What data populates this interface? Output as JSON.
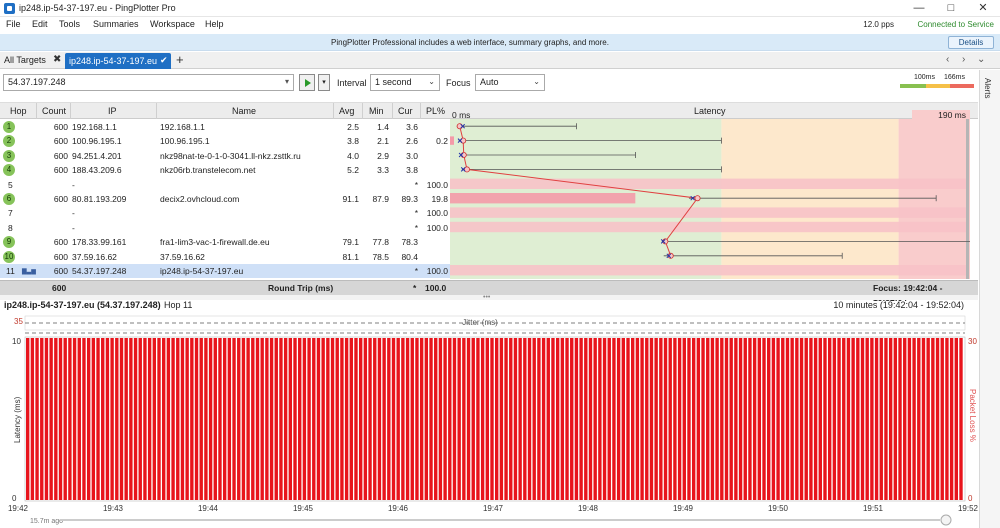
{
  "window": {
    "title": "ip248.ip-54-37-197.eu - PingPlotter Pro"
  },
  "menu": {
    "items": [
      "File",
      "Edit",
      "Tools",
      "Summaries",
      "Workspace",
      "Help"
    ],
    "pps": "12.0 pps",
    "status": "Connected to Service"
  },
  "banner": {
    "message": "PingPlotter Professional includes a web interface, summary graphs, and more.",
    "details_label": "Details"
  },
  "tabs": {
    "all_targets": "All Targets",
    "active": "ip248.ip-54-37-197.eu"
  },
  "toolbar": {
    "target": "54.37.197.248",
    "interval_label": "Interval",
    "interval_value": "1 second",
    "focus_label": "Focus",
    "focus_value": "Auto",
    "legend_100": "100ms",
    "legend_166": "166ms"
  },
  "alerts_label": "Alerts",
  "colors": {
    "good": "#88c050",
    "warn": "#f5c048",
    "bad": "#ec6a5e",
    "green_bg": "#dfeed3",
    "yellow_bg": "#fde8cc",
    "red_bg": "#f9cccc"
  },
  "table": {
    "headers": {
      "hop": "Hop",
      "count": "Count",
      "ip": "IP",
      "name": "Name",
      "avg": "Avg",
      "min": "Min",
      "cur": "Cur",
      "pl": "PL%"
    },
    "graph_header": {
      "start": "0 ms",
      "title": "Latency",
      "end": "190 ms"
    },
    "rows": [
      {
        "hop": "1",
        "count": "600",
        "ip": "192.168.1.1",
        "name": "192.168.1.1",
        "avg": "2.5",
        "min": "1.4",
        "cur": "3.6",
        "pl": "",
        "minv": 1.4,
        "avgv": 2.5,
        "maxv": 46,
        "curv": 3.6,
        "loss": 0
      },
      {
        "hop": "2",
        "count": "600",
        "ip": "100.96.195.1",
        "name": "100.96.195.1",
        "avg": "3.8",
        "min": "2.1",
        "cur": "2.6",
        "pl": "0.2",
        "minv": 2.1,
        "avgv": 3.8,
        "maxv": 100,
        "curv": 2.6,
        "loss": 0.2
      },
      {
        "hop": "3",
        "count": "600",
        "ip": "94.251.4.201",
        "name": "nkz98nat-te-0-1-0-3041.ll-nkz.zsttk.ru",
        "avg": "4.0",
        "min": "2.9",
        "cur": "3.0",
        "pl": "",
        "minv": 2.9,
        "avgv": 4.0,
        "maxv": 68,
        "curv": 3.0,
        "loss": 0
      },
      {
        "hop": "4",
        "count": "600",
        "ip": "188.43.209.6",
        "name": "nkz06rb.transtelecom.net",
        "avg": "5.2",
        "min": "3.3",
        "cur": "3.8",
        "pl": "",
        "minv": 3.3,
        "avgv": 5.2,
        "maxv": 100,
        "curv": 3.8,
        "loss": 0
      },
      {
        "hop": "5",
        "count": "",
        "ip": "-",
        "name": "",
        "avg": "",
        "min": "",
        "cur": "*",
        "pl": "100.0",
        "minv": null,
        "avgv": null,
        "maxv": null,
        "curv": null,
        "loss": 100
      },
      {
        "hop": "6",
        "count": "600",
        "ip": "80.81.193.209",
        "name": "decix2.ovhcloud.com",
        "avg": "91.1",
        "min": "87.9",
        "cur": "89.3",
        "pl": "19.8",
        "minv": 87.9,
        "avgv": 91.1,
        "maxv": 180,
        "curv": 89.3,
        "loss": 19.8
      },
      {
        "hop": "7",
        "count": "",
        "ip": "-",
        "name": "",
        "avg": "",
        "min": "",
        "cur": "*",
        "pl": "100.0",
        "minv": null,
        "avgv": null,
        "maxv": null,
        "curv": null,
        "loss": 100
      },
      {
        "hop": "8",
        "count": "",
        "ip": "-",
        "name": "",
        "avg": "",
        "min": "",
        "cur": "*",
        "pl": "100.0",
        "minv": null,
        "avgv": null,
        "maxv": null,
        "curv": null,
        "loss": 100
      },
      {
        "hop": "9",
        "count": "600",
        "ip": "178.33.99.161",
        "name": "fra1-lim3-vac-1-firewall.de.eu",
        "avg": "79.1",
        "min": "77.8",
        "cur": "78.3",
        "pl": "",
        "minv": 77.8,
        "avgv": 79.1,
        "maxv": 195,
        "curv": 78.3,
        "loss": 0
      },
      {
        "hop": "10",
        "count": "600",
        "ip": "37.59.16.62",
        "name": "37.59.16.62",
        "avg": "81.1",
        "min": "78.5",
        "cur": "80.4",
        "pl": "",
        "minv": 78.5,
        "avgv": 81.1,
        "maxv": 145,
        "curv": 80.4,
        "loss": 0
      },
      {
        "hop": "11",
        "count": "600",
        "ip": "54.37.197.248",
        "name": "ip248.ip-54-37-197.eu",
        "avg": "",
        "min": "",
        "cur": "*",
        "pl": "100.0",
        "minv": null,
        "avgv": null,
        "maxv": null,
        "curv": null,
        "loss": 100
      }
    ],
    "round_trip": {
      "count": "600",
      "label": "Round Trip (ms)",
      "cur": "*",
      "pl": "100.0",
      "focus": "Focus: 19:42:04 - 19:52:04"
    }
  },
  "lower": {
    "title": "ip248.ip-54-37-197.eu (54.37.197.248)",
    "hop": "Hop 11",
    "range": "10 minutes (19:42:04 - 19:52:04)",
    "jitter_label": "Jitter (ms)",
    "y_top": "35",
    "y_max": "10",
    "y_min": "0",
    "right_max": "30",
    "right_min": "0",
    "ylabel": "Latency (ms)",
    "y2label": "Packet Loss %",
    "times": [
      "19:42",
      "19:43",
      "19:44",
      "19:45",
      "19:46",
      "19:47",
      "19:48",
      "19:49",
      "19:50",
      "19:51",
      "19:52"
    ],
    "ago": "15.7m ago"
  }
}
